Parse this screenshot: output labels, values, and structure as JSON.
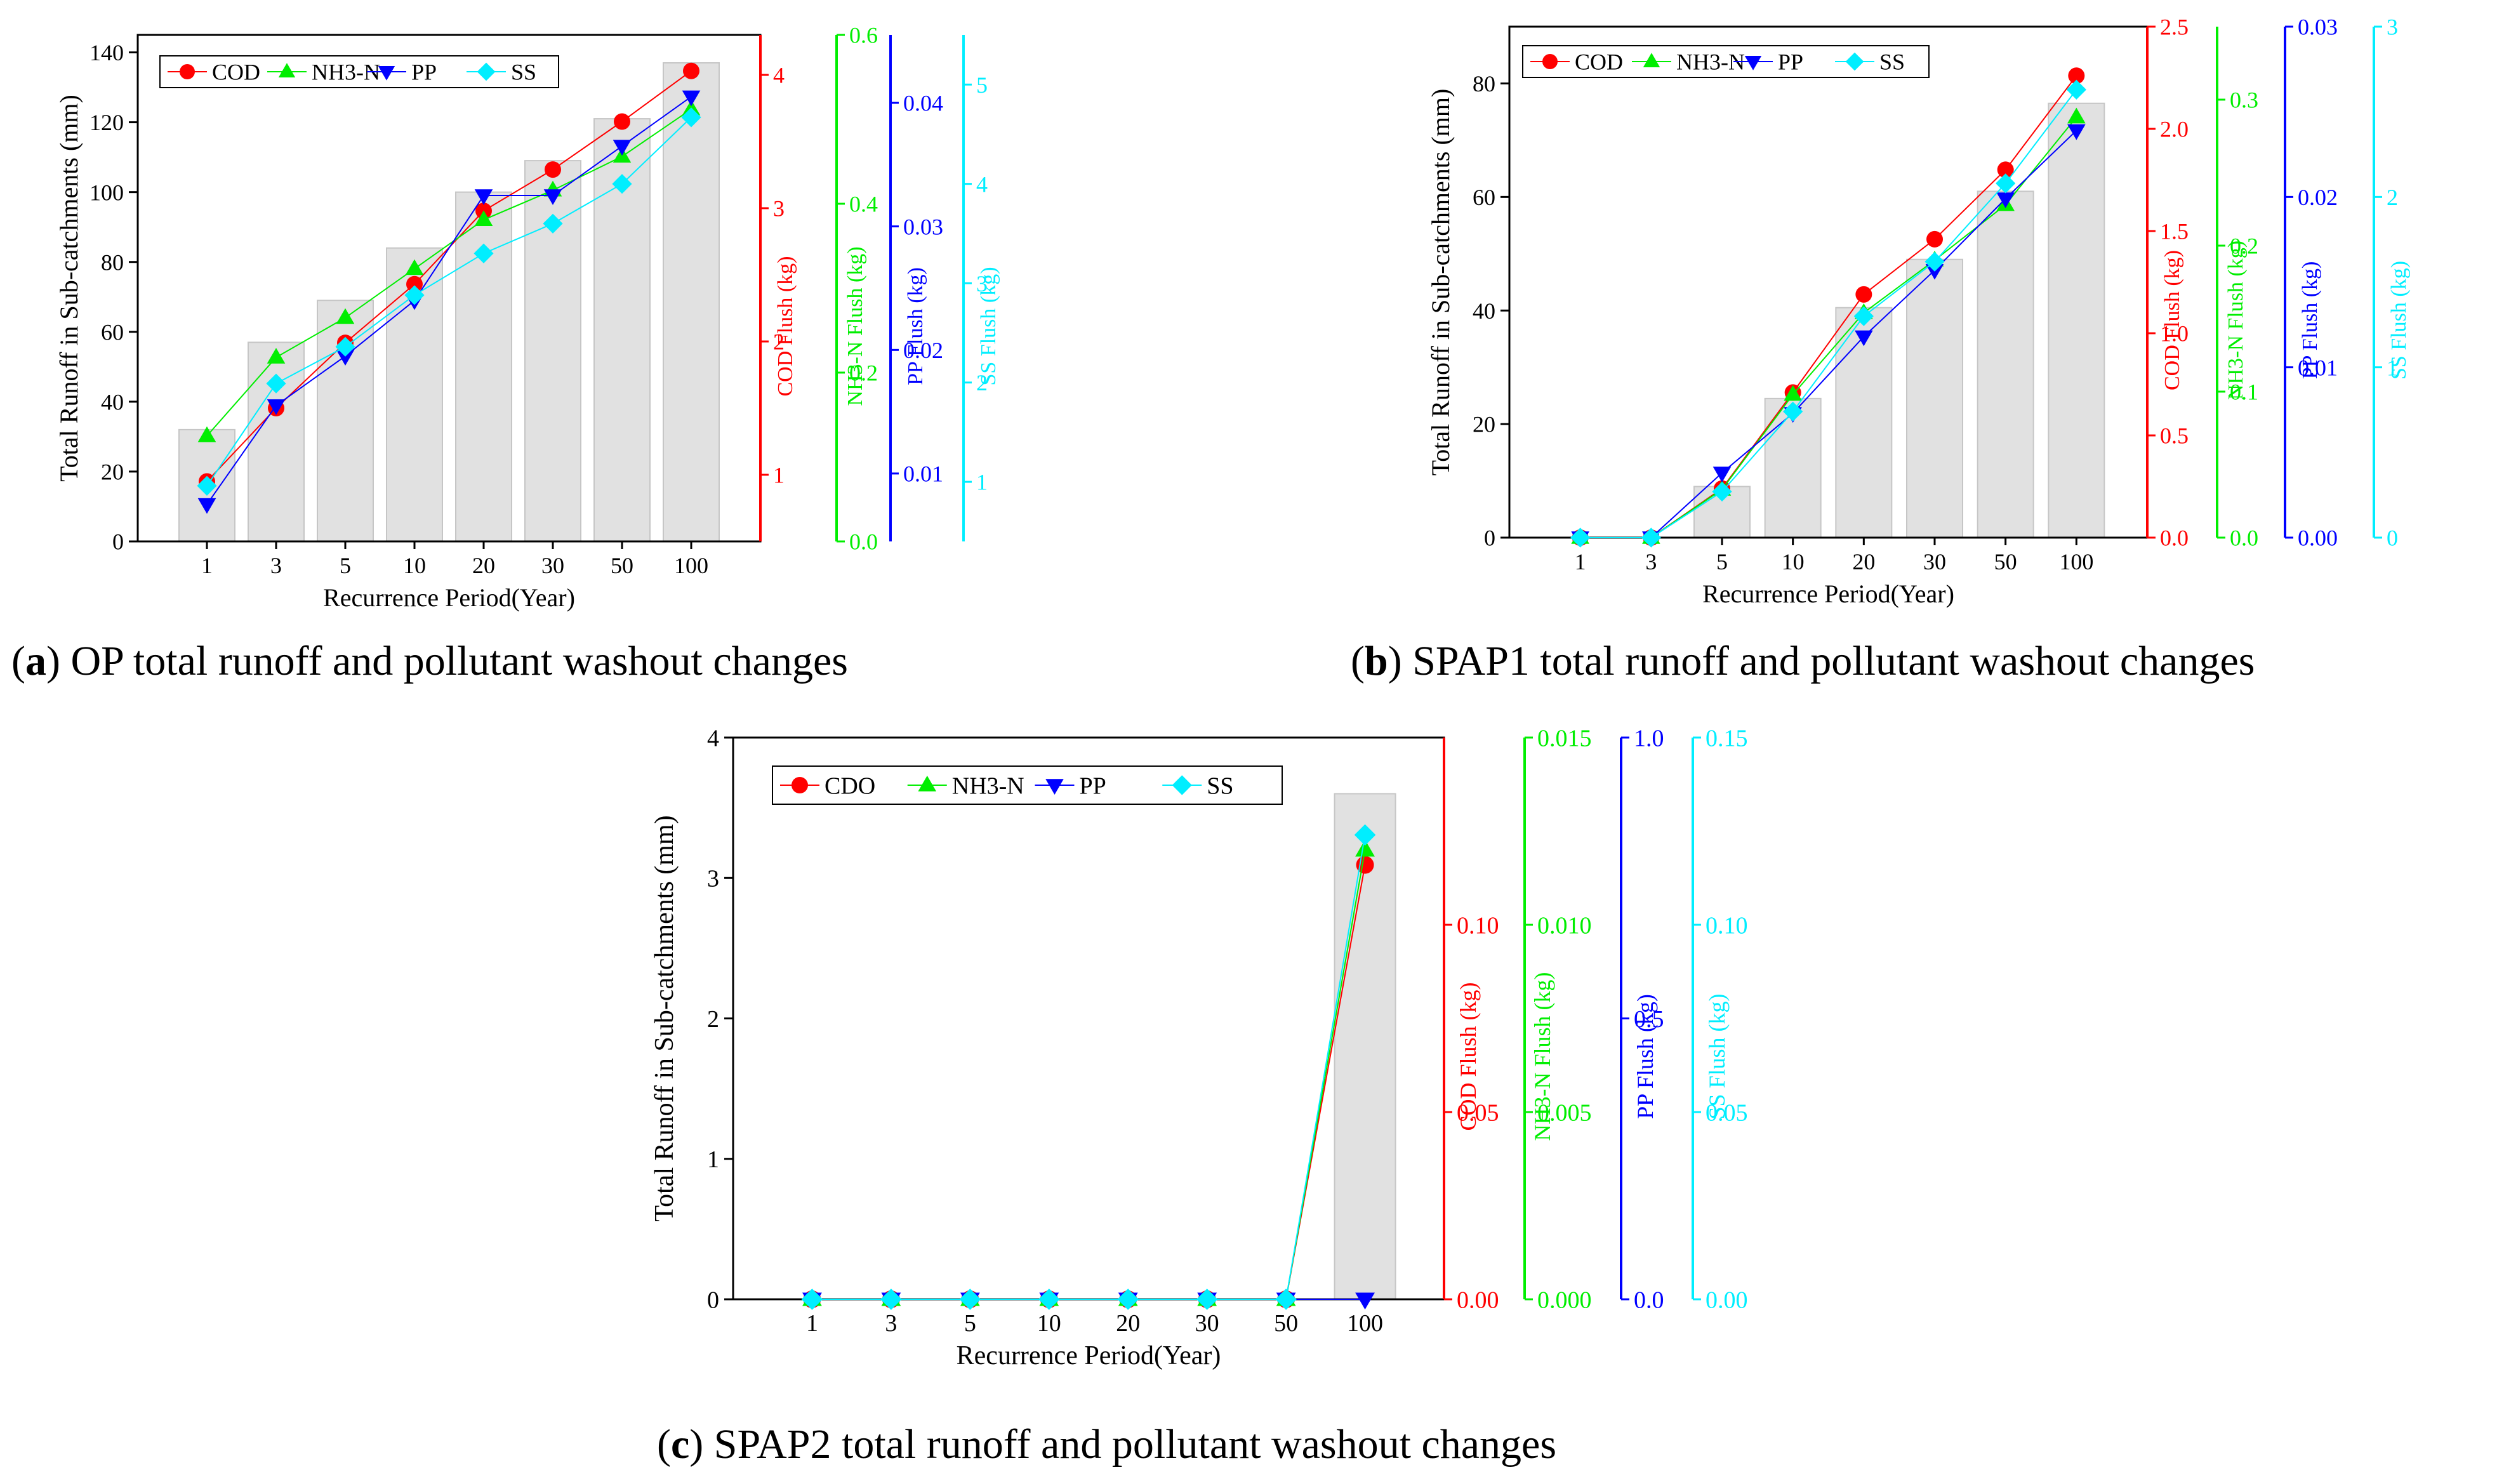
{
  "figure": {
    "panels": [
      {
        "letter": "a",
        "caption_text": " OP total runoff and pollutant washout changes",
        "legend": [
          "COD",
          "NH3-N",
          "PP",
          "SS"
        ]
      },
      {
        "letter": "b",
        "caption_text": " SPAP1 total runoff and pollutant washout changes",
        "legend": [
          "COD",
          "NH3-N",
          "PP",
          "SS"
        ]
      },
      {
        "letter": "c",
        "caption_text": " SPAP2 total runoff and pollutant washout changes",
        "legend": [
          "CDO",
          "NH3-N",
          "PP",
          "SS"
        ]
      }
    ]
  },
  "chart_data": [
    {
      "type": "bar",
      "panel": "a",
      "categories": [
        "1",
        "3",
        "5",
        "10",
        "20",
        "30",
        "50",
        "100"
      ],
      "xlabel": "Recurrence Period(Year)",
      "bars": {
        "name": "Total Runoff in Sub-catchments",
        "values": [
          32,
          57,
          69,
          84,
          100,
          109,
          121,
          137
        ]
      },
      "axes": [
        {
          "id": "runoff",
          "label": "Total Runoff in Sub-catchments (mm)",
          "range": [
            0,
            145
          ],
          "ticks": [
            0,
            20,
            40,
            60,
            80,
            100,
            120,
            140
          ],
          "labels": [
            "0",
            "20",
            "40",
            "60",
            "80",
            "100",
            "120",
            "140"
          ],
          "color": "#000000"
        },
        {
          "id": "cod",
          "label": "COD Flush (kg)",
          "range": [
            0.5,
            4.3
          ],
          "ticks": [
            1,
            2,
            3,
            4
          ],
          "labels": [
            "1",
            "2",
            "3",
            "4"
          ],
          "color": "#ff0000"
        },
        {
          "id": "nh3",
          "label": "NH3-N Flush (kg)",
          "range": [
            0,
            0.6
          ],
          "ticks": [
            0,
            0.2,
            0.4,
            0.6
          ],
          "labels": [
            "0.0",
            "0.2",
            "0.4",
            "0.6"
          ],
          "color": "#00ee00"
        },
        {
          "id": "pp",
          "label": "PP Flush (kg)",
          "range": [
            0.0045,
            0.0455
          ],
          "ticks": [
            0.01,
            0.02,
            0.03,
            0.04
          ],
          "labels": [
            "0.01",
            "0.02",
            "0.03",
            "0.04"
          ],
          "color": "#0000ff"
        },
        {
          "id": "ss",
          "label": "SS Flush (kg)",
          "range": [
            0.4,
            5.5
          ],
          "ticks": [
            1,
            2,
            3,
            4,
            5
          ],
          "labels": [
            "1",
            "2",
            "3",
            "4",
            "5"
          ],
          "color": "#00eeff"
        }
      ],
      "series": [
        {
          "name": "COD",
          "axis": "cod",
          "marker": "circle",
          "color": "#ff0000",
          "values": [
            0.95,
            1.5,
            1.99,
            2.43,
            2.98,
            3.29,
            3.65,
            4.03
          ]
        },
        {
          "name": "NH3-N",
          "axis": "nh3",
          "marker": "triangle-up",
          "color": "#00ee00",
          "values": [
            0.125,
            0.218,
            0.265,
            0.323,
            0.381,
            0.416,
            0.456,
            0.512
          ]
        },
        {
          "name": "PP",
          "axis": "pp",
          "marker": "triangle-down",
          "color": "#0000ff",
          "values": [
            0.0075,
            0.0155,
            0.0195,
            0.024,
            0.0325,
            0.0325,
            0.0365,
            0.0405
          ]
        },
        {
          "name": "SS",
          "axis": "ss",
          "marker": "diamond",
          "color": "#00eeff",
          "values": [
            0.96,
            1.99,
            2.36,
            2.88,
            3.3,
            3.6,
            4.0,
            4.67
          ]
        }
      ]
    },
    {
      "type": "bar",
      "panel": "b",
      "categories": [
        "1",
        "3",
        "5",
        "10",
        "20",
        "30",
        "50",
        "100"
      ],
      "xlabel": "Recurrence Period(Year)",
      "bars": {
        "name": "Total Runoff in Sub-catchments",
        "values": [
          0,
          0,
          9,
          24.5,
          40.5,
          49,
          61,
          76.5
        ]
      },
      "axes": [
        {
          "id": "runoff",
          "label": "Total Runoff in Sub-catchments (mm)",
          "range": [
            0,
            90
          ],
          "ticks": [
            0,
            20,
            40,
            60,
            80
          ],
          "labels": [
            "0",
            "20",
            "40",
            "60",
            "80"
          ],
          "color": "#000000"
        },
        {
          "id": "cod",
          "label": "COD Flush (kg)",
          "range": [
            0,
            2.5
          ],
          "ticks": [
            0,
            0.5,
            1,
            1.5,
            2,
            2.5
          ],
          "labels": [
            "0.0",
            "0.5",
            "1.0",
            "1.5",
            "2.0",
            "2.5"
          ],
          "color": "#ff0000"
        },
        {
          "id": "nh3",
          "label": "NH3-N Flush (kg)",
          "range": [
            0,
            0.35
          ],
          "ticks": [
            0,
            0.1,
            0.2,
            0.3
          ],
          "labels": [
            "0.0",
            "0.1",
            "0.2",
            "0.3"
          ],
          "color": "#00ee00"
        },
        {
          "id": "pp",
          "label": "PP Flush (kg)",
          "range": [
            0,
            0.03
          ],
          "ticks": [
            0,
            0.01,
            0.02,
            0.03
          ],
          "labels": [
            "0.00",
            "0.01",
            "0.02",
            "0.03"
          ],
          "color": "#0000ff"
        },
        {
          "id": "ss",
          "label": "SS Flush (kg)",
          "range": [
            0,
            3
          ],
          "ticks": [
            0,
            1,
            2,
            3
          ],
          "labels": [
            "0",
            "1",
            "2",
            "3"
          ],
          "color": "#00eeff"
        }
      ],
      "series": [
        {
          "name": "COD",
          "axis": "cod",
          "marker": "circle",
          "color": "#ff0000",
          "values": [
            0,
            0,
            0.24,
            0.71,
            1.19,
            1.46,
            1.8,
            2.26
          ]
        },
        {
          "name": "NH3-N",
          "axis": "nh3",
          "marker": "triangle-up",
          "color": "#00ee00",
          "values": [
            0,
            0,
            0.033,
            0.098,
            0.154,
            0.19,
            0.228,
            0.288
          ]
        },
        {
          "name": "PP",
          "axis": "pp",
          "marker": "triangle-down",
          "color": "#0000ff",
          "values": [
            0,
            0,
            0.0038,
            0.0073,
            0.0118,
            0.0157,
            0.0199,
            0.0239
          ]
        },
        {
          "name": "SS",
          "axis": "ss",
          "marker": "diamond",
          "color": "#00eeff",
          "values": [
            0,
            0,
            0.27,
            0.74,
            1.3,
            1.62,
            2.08,
            2.63
          ]
        }
      ]
    },
    {
      "type": "bar",
      "panel": "c",
      "categories": [
        "1",
        "3",
        "5",
        "10",
        "20",
        "30",
        "50",
        "100"
      ],
      "xlabel": "Recurrence Period(Year)",
      "bars": {
        "name": "Total Runoff in Sub-catchments",
        "values": [
          0,
          0,
          0,
          0,
          0,
          0,
          0,
          3.6
        ]
      },
      "axes": [
        {
          "id": "runoff",
          "label": "Total Runoff in Sub-catchments (mm)",
          "range": [
            0,
            4
          ],
          "ticks": [
            0,
            1,
            2,
            3,
            4
          ],
          "labels": [
            "0",
            "1",
            "2",
            "3",
            "4"
          ],
          "color": "#000000"
        },
        {
          "id": "cod",
          "label": "COD Flush (kg)",
          "range": [
            0,
            0.15
          ],
          "ticks": [
            0,
            0.05,
            0.1
          ],
          "labels": [
            "0.00",
            "0.05",
            "0.10"
          ],
          "color": "#ff0000"
        },
        {
          "id": "nh3",
          "label": "NH3-N Flush (kg)",
          "range": [
            0,
            0.015
          ],
          "ticks": [
            0,
            0.005,
            0.01,
            0.015
          ],
          "labels": [
            "0.000",
            "0.005",
            "0.010",
            "0.015"
          ],
          "color": "#00ee00"
        },
        {
          "id": "pp",
          "label": "PP Flush (kg)",
          "range": [
            0,
            1
          ],
          "ticks": [
            0,
            0.5,
            1
          ],
          "labels": [
            "0.0",
            "0.5",
            "1.0"
          ],
          "color": "#0000ff"
        },
        {
          "id": "ss",
          "label": "SS Flush (kg)",
          "range": [
            0,
            0.15
          ],
          "ticks": [
            0,
            0.05,
            0.1,
            0.15
          ],
          "labels": [
            "0.00",
            "0.05",
            "0.10",
            "0.15"
          ],
          "color": "#00eeff"
        }
      ],
      "series": [
        {
          "name": "CDO",
          "axis": "cod",
          "marker": "circle",
          "color": "#ff0000",
          "values": [
            0,
            0,
            0,
            0,
            0,
            0,
            0,
            0.116
          ]
        },
        {
          "name": "NH3-N",
          "axis": "nh3",
          "marker": "triangle-up",
          "color": "#00ee00",
          "values": [
            0,
            0,
            0,
            0,
            0,
            0,
            0,
            0.012
          ]
        },
        {
          "name": "PP",
          "axis": "pp",
          "marker": "triangle-down",
          "color": "#0000ff",
          "values": [
            0,
            0,
            0,
            0,
            0,
            0,
            0,
            0
          ]
        },
        {
          "name": "SS",
          "axis": "ss",
          "marker": "diamond",
          "color": "#00eeff",
          "values": [
            0,
            0,
            0,
            0,
            0,
            0,
            0,
            0.124
          ]
        }
      ]
    }
  ]
}
